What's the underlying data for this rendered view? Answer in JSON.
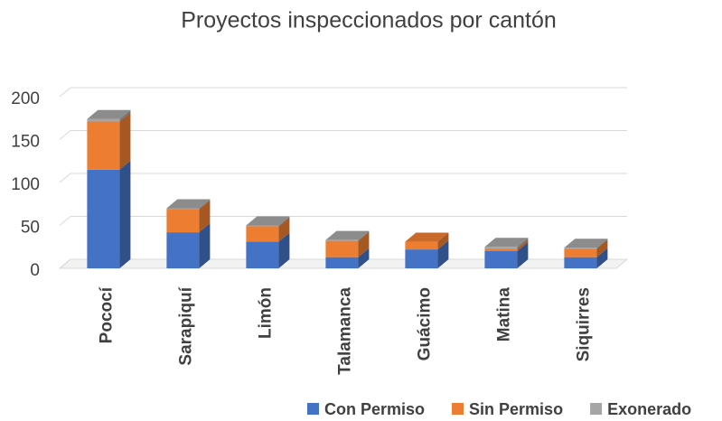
{
  "chart_data": {
    "type": "bar3d_stacked",
    "title": "Proyectos inspeccionados por cantón",
    "categories": [
      "Pococí",
      "Sarapiquí",
      "Limón",
      "Talamanca",
      "Guácimo",
      "Matina",
      "Siquirres"
    ],
    "series": [
      {
        "name": "Con Permiso",
        "color": "#4472c4",
        "values": [
          115,
          42,
          31,
          13,
          22,
          20,
          13
        ]
      },
      {
        "name": "Sin Permiso",
        "color": "#ed7d31",
        "values": [
          56,
          27,
          18,
          19,
          9,
          3,
          10
        ]
      },
      {
        "name": "Exonerado",
        "color": "#a5a5a5",
        "values": [
          3,
          1,
          1,
          1,
          0,
          2,
          1
        ]
      }
    ],
    "ylim": [
      0,
      200
    ],
    "yticks": [
      0,
      50,
      100,
      150,
      200
    ],
    "grid": true,
    "legend": "bottom"
  }
}
